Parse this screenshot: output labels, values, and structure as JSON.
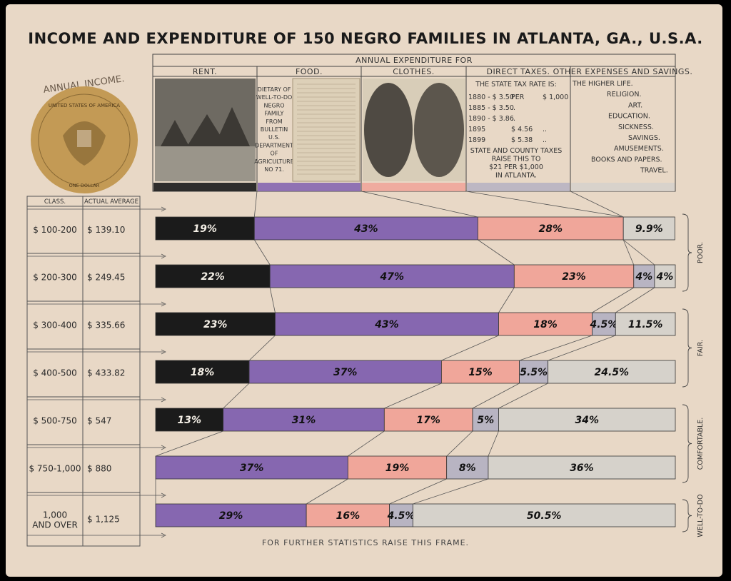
{
  "title": "INCOME AND EXPENDITURE OF 150 NEGRO FAMILIES IN ATLANTA, GA., U.S.A.",
  "footer": "FOR FURTHER STATISTICS RAISE THIS FRAME.",
  "seal": {
    "caption": "ANNUAL INCOME.",
    "ring_text": "UNITED STATES OF AMERICA",
    "bottom_text": "ONE DOLLAR",
    "color": "#c39a55"
  },
  "expenditure_header": {
    "title": "ANNUAL EXPENDITURE FOR",
    "columns": [
      "RENT.",
      "FOOD.",
      "CLOTHES.",
      "DIRECT TAXES.",
      "OTHER EXPENSES AND SAVINGS."
    ],
    "food_note": [
      "DIETARY OF",
      "WELL-TO-DO",
      "NEGRO",
      "FAMILY",
      "FROM",
      "BULLETIN",
      "U.S.",
      "DEPARTMENT",
      "OF",
      "AGRICULTURE",
      "NO 71."
    ],
    "tax_lines": [
      [
        "THE STATE TAX RATE IS:",
        "",
        ""
      ],
      [
        "1880 - $ 3.50",
        "PER",
        "$ 1,000"
      ],
      [
        "1885 - $ 3.50",
        "..",
        ""
      ],
      [
        "1890 - $ 3.86",
        "..",
        ""
      ],
      [
        "1895",
        "$ 4.56",
        ".."
      ],
      [
        "1899",
        "$ 5.38",
        ".."
      ]
    ],
    "tax_note": [
      "STATE AND COUNTY TAXES",
      "RAISE THIS TO",
      "$21 PER $1,000",
      "IN ATLANTA."
    ],
    "other_items": [
      "THE HIGHER LIFE.",
      "RELIGION.",
      "ART.",
      "EDUCATION.",
      "SICKNESS.",
      "SAVINGS.",
      "AMUSEMENTS.",
      "BOOKS AND PAPERS.",
      "TRAVEL."
    ]
  },
  "table_headers": {
    "class": "CLASS.",
    "average": "ACTUAL AVERAGE"
  },
  "group_labels": [
    "POOR.",
    "FAIR.",
    "COMFORTABLE.",
    "WELL-TO-DO"
  ],
  "colors": {
    "rent": "#1b1b1b",
    "food": "#8667b0",
    "clothes": "#f0a69a",
    "taxes": "#b8b4c2",
    "other": "#d6d2cb"
  },
  "chart_data": {
    "type": "bar",
    "stacked": true,
    "orientation": "horizontal",
    "categories": [
      "$ 100-200",
      "$ 200-300",
      "$ 300-400",
      "$ 400-500",
      "$ 500-750",
      "$ 750-1,000",
      "1,000 AND OVER"
    ],
    "averages": [
      "$ 139.10",
      "$ 249.45",
      "$ 335.66",
      "$ 433.82",
      "$ 547",
      "$ 880",
      "$ 1,125"
    ],
    "series": [
      {
        "name": "RENT.",
        "values": [
          19,
          22,
          23,
          18,
          13,
          0,
          0
        ]
      },
      {
        "name": "FOOD.",
        "values": [
          43,
          47,
          43,
          37,
          31,
          37,
          29
        ]
      },
      {
        "name": "CLOTHES.",
        "values": [
          28,
          23,
          18,
          15,
          17,
          19,
          16
        ]
      },
      {
        "name": "DIRECT TAXES.",
        "values": [
          0,
          4,
          4.5,
          5.5,
          5,
          8,
          4.5
        ]
      },
      {
        "name": "OTHER EXPENSES AND SAVINGS.",
        "values": [
          9.9,
          4,
          11.5,
          24.5,
          34,
          36,
          50.5
        ]
      }
    ],
    "labels": [
      [
        "19%",
        "43%",
        "28%",
        "",
        "9.9%"
      ],
      [
        "22%",
        "47%",
        "23%",
        "4%",
        "4%"
      ],
      [
        "23%",
        "43%",
        "18%",
        "4.5%",
        "11.5%"
      ],
      [
        "18%",
        "37%",
        "15%",
        "5.5%",
        "24.5%"
      ],
      [
        "13%",
        "31%",
        "17%",
        "5%",
        "34%"
      ],
      [
        "",
        "37%",
        "19%",
        "8%",
        "36%"
      ],
      [
        "",
        "29%",
        "16%",
        "4.5%",
        "50.5%"
      ]
    ]
  }
}
